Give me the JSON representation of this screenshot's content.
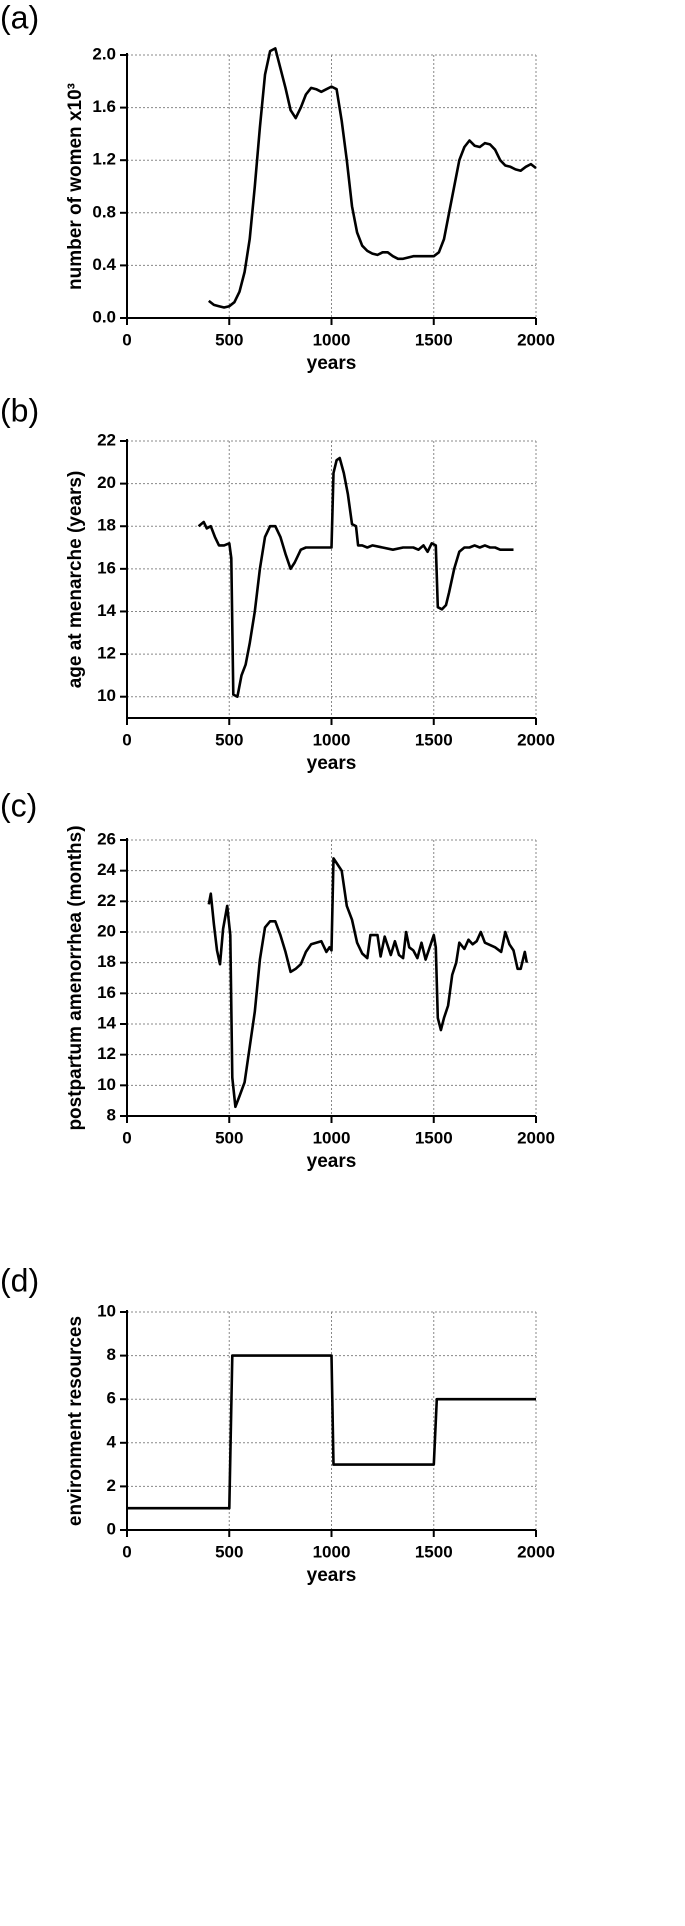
{
  "chart_data": [
    {
      "type": "line",
      "panel_label": "(a)",
      "xlabel": "years",
      "ylabel": "number of women x10³",
      "color": "#000000",
      "grid": true,
      "xlim": [
        0,
        2000
      ],
      "xticks": [
        0,
        500,
        1000,
        1500,
        2000
      ],
      "ylim": [
        0,
        2.0
      ],
      "yticks": [
        {
          "value": 0,
          "label": "0.0"
        },
        0.4,
        0.8,
        1.2,
        1.6,
        {
          "value": 2,
          "label": "2.0"
        }
      ],
      "x": [
        400,
        425,
        450,
        475,
        500,
        525,
        550,
        575,
        600,
        625,
        650,
        675,
        700,
        725,
        750,
        775,
        800,
        825,
        850,
        875,
        900,
        925,
        950,
        975,
        1000,
        1025,
        1050,
        1075,
        1100,
        1125,
        1150,
        1175,
        1200,
        1225,
        1250,
        1275,
        1300,
        1325,
        1350,
        1375,
        1400,
        1425,
        1450,
        1475,
        1500,
        1525,
        1550,
        1575,
        1600,
        1625,
        1650,
        1675,
        1700,
        1725,
        1750,
        1775,
        1800,
        1825,
        1850,
        1875,
        1900,
        1925,
        1950,
        1975,
        2000
      ],
      "values": [
        0.13,
        0.1,
        0.09,
        0.08,
        0.09,
        0.12,
        0.2,
        0.35,
        0.6,
        1.0,
        1.45,
        1.85,
        2.03,
        2.05,
        1.9,
        1.75,
        1.58,
        1.52,
        1.6,
        1.7,
        1.75,
        1.74,
        1.72,
        1.74,
        1.76,
        1.74,
        1.5,
        1.2,
        0.85,
        0.65,
        0.55,
        0.51,
        0.49,
        0.48,
        0.5,
        0.5,
        0.47,
        0.45,
        0.45,
        0.46,
        0.47,
        0.47,
        0.47,
        0.47,
        0.47,
        0.5,
        0.6,
        0.8,
        1.0,
        1.2,
        1.3,
        1.35,
        1.31,
        1.3,
        1.33,
        1.32,
        1.28,
        1.2,
        1.16,
        1.15,
        1.13,
        1.12,
        1.15,
        1.17,
        1.14
      ]
    },
    {
      "type": "line",
      "panel_label": "(b)",
      "xlabel": "years",
      "ylabel": "age at menarche (years)",
      "color": "#000000",
      "grid": true,
      "xlim": [
        0,
        2000
      ],
      "xticks": [
        0,
        500,
        1000,
        1500,
        2000
      ],
      "ylim": [
        9,
        22
      ],
      "yticks": [
        10,
        12,
        14,
        16,
        18,
        20,
        22
      ],
      "x": [
        350,
        375,
        390,
        410,
        430,
        450,
        475,
        500,
        510,
        520,
        540,
        560,
        580,
        600,
        625,
        650,
        675,
        700,
        725,
        750,
        775,
        800,
        820,
        850,
        875,
        900,
        950,
        1000,
        1010,
        1025,
        1040,
        1060,
        1080,
        1100,
        1120,
        1130,
        1150,
        1175,
        1200,
        1250,
        1300,
        1350,
        1400,
        1425,
        1450,
        1470,
        1490,
        1510,
        1520,
        1540,
        1560,
        1575,
        1600,
        1625,
        1650,
        1675,
        1700,
        1725,
        1750,
        1775,
        1800,
        1825,
        1850,
        1875,
        1890
      ],
      "values": [
        18.0,
        18.2,
        17.9,
        18.0,
        17.5,
        17.1,
        17.1,
        17.2,
        16.5,
        10.1,
        10.0,
        11.0,
        11.5,
        12.5,
        14.0,
        16.0,
        17.5,
        18.0,
        18.0,
        17.5,
        16.7,
        16.0,
        16.3,
        16.9,
        17.0,
        17.0,
        17.0,
        17.0,
        20.5,
        21.1,
        21.2,
        20.5,
        19.5,
        18.1,
        18.0,
        17.1,
        17.1,
        17.0,
        17.1,
        17.0,
        16.9,
        17.0,
        17.0,
        16.9,
        17.1,
        16.8,
        17.2,
        17.1,
        14.2,
        14.1,
        14.3,
        14.9,
        16.0,
        16.8,
        17.0,
        17.0,
        17.1,
        17.0,
        17.1,
        17.0,
        17.0,
        16.9,
        16.9,
        16.9,
        16.9
      ]
    },
    {
      "type": "line",
      "panel_label": "(c)",
      "xlabel": "years",
      "ylabel": "postpartum amenorrhea (months)",
      "color": "#000000",
      "grid": true,
      "xlim": [
        0,
        2000
      ],
      "xticks": [
        0,
        500,
        1000,
        1500,
        2000
      ],
      "ylim": [
        8,
        26
      ],
      "yticks": [
        8,
        10,
        12,
        14,
        16,
        18,
        20,
        22,
        24,
        26
      ],
      "x": [
        400,
        410,
        425,
        440,
        455,
        470,
        490,
        505,
        515,
        530,
        550,
        575,
        600,
        625,
        650,
        675,
        700,
        725,
        750,
        775,
        800,
        825,
        850,
        875,
        900,
        950,
        975,
        990,
        1000,
        1010,
        1025,
        1050,
        1075,
        1100,
        1125,
        1150,
        1175,
        1190,
        1225,
        1240,
        1260,
        1290,
        1310,
        1330,
        1350,
        1365,
        1380,
        1400,
        1420,
        1440,
        1460,
        1480,
        1500,
        1510,
        1520,
        1535,
        1550,
        1570,
        1590,
        1610,
        1625,
        1650,
        1670,
        1690,
        1710,
        1730,
        1750,
        1800,
        1830,
        1850,
        1870,
        1890,
        1910,
        1925,
        1945,
        1955
      ],
      "values": [
        21.8,
        22.5,
        20.5,
        18.8,
        17.9,
        20.2,
        21.7,
        19.8,
        10.5,
        8.6,
        9.3,
        10.2,
        12.5,
        14.8,
        18.2,
        20.3,
        20.7,
        20.7,
        19.8,
        18.7,
        17.4,
        17.6,
        17.9,
        18.7,
        19.2,
        19.4,
        18.7,
        19.0,
        18.8,
        24.8,
        24.5,
        24.0,
        21.7,
        20.8,
        19.3,
        18.6,
        18.3,
        19.8,
        19.8,
        18.4,
        19.7,
        18.5,
        19.4,
        18.5,
        18.3,
        20.0,
        19.0,
        18.8,
        18.3,
        19.3,
        18.2,
        19.0,
        19.8,
        19.0,
        14.4,
        13.6,
        14.4,
        15.2,
        17.2,
        18.0,
        19.3,
        18.9,
        19.5,
        19.2,
        19.4,
        20.0,
        19.3,
        19.0,
        18.7,
        20.0,
        19.2,
        18.8,
        17.6,
        17.6,
        18.7,
        18.0
      ]
    },
    {
      "type": "line",
      "panel_label": "(d)",
      "xlabel": "years",
      "ylabel": "environment resources",
      "color": "#000000",
      "grid": true,
      "xlim": [
        0,
        2000
      ],
      "xticks": [
        0,
        500,
        1000,
        1500,
        2000
      ],
      "ylim": [
        0,
        10
      ],
      "yticks": [
        0,
        2,
        4,
        6,
        8,
        10
      ],
      "x": [
        0,
        500,
        515,
        1000,
        1010,
        1500,
        1515,
        2000
      ],
      "values": [
        1,
        1,
        8,
        8,
        3,
        3,
        6,
        6
      ]
    }
  ]
}
